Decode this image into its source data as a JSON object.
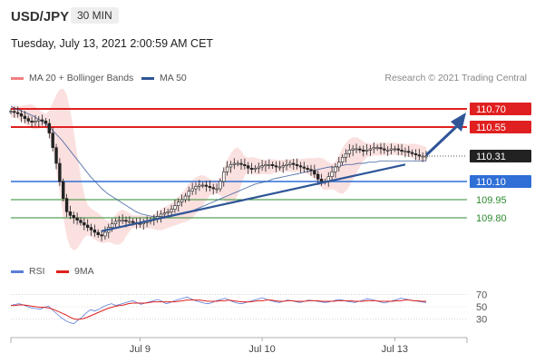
{
  "header": {
    "symbol": "USD/JPY",
    "timeframe": "30 MIN",
    "datetime": "Tuesday, July 13, 2021 2:00:59 AM CET",
    "credit": "Research © 2021 Trading Central"
  },
  "legend_main": [
    {
      "label": "MA 20 + Bollinger Bands",
      "color": "#f08080"
    },
    {
      "label": "MA 50",
      "color": "#2f5597"
    }
  ],
  "legend_rsi": [
    {
      "label": "RSI",
      "color": "#5b7fd6"
    },
    {
      "label": "9MA",
      "color": "#e02020"
    }
  ],
  "chart_data": {
    "type": "line",
    "price_axis": {
      "min": 109.5,
      "max": 110.85
    },
    "levels": [
      {
        "label": "110.70",
        "value": 110.7,
        "kind": "resistance",
        "color": "#e02020"
      },
      {
        "label": "110.55",
        "value": 110.55,
        "kind": "resistance",
        "color": "#e02020"
      },
      {
        "label": "110.31",
        "value": 110.31,
        "kind": "current",
        "color": "#222222"
      },
      {
        "label": "110.10",
        "value": 110.1,
        "kind": "pivot",
        "color": "#2f6fd6"
      },
      {
        "label": "109.95",
        "value": 109.95,
        "kind": "support",
        "color": "#2e8b2e"
      },
      {
        "label": "109.80",
        "value": 109.8,
        "kind": "support",
        "color": "#2e8b2e"
      }
    ],
    "x_ticks": [
      {
        "label": "Jul 9",
        "t": 37
      },
      {
        "label": "Jul 10",
        "t": 72
      },
      {
        "label": "Jul 13",
        "t": 110
      }
    ],
    "n_bars": 120,
    "price": [
      110.68,
      110.67,
      110.66,
      110.64,
      110.62,
      110.6,
      110.59,
      110.6,
      110.61,
      110.6,
      110.58,
      110.5,
      110.38,
      110.25,
      110.1,
      109.96,
      109.85,
      109.82,
      109.8,
      109.78,
      109.76,
      109.74,
      109.72,
      109.7,
      109.68,
      109.66,
      109.65,
      109.68,
      109.72,
      109.75,
      109.77,
      109.78,
      109.78,
      109.77,
      109.77,
      109.76,
      109.75,
      109.75,
      109.76,
      109.77,
      109.78,
      109.79,
      109.81,
      109.83,
      109.84,
      109.85,
      109.87,
      109.9,
      109.93,
      109.95,
      109.98,
      110.02,
      110.04,
      110.06,
      110.07,
      110.07,
      110.06,
      110.05,
      110.04,
      110.04,
      110.1,
      110.18,
      110.22,
      110.24,
      110.25,
      110.25,
      110.24,
      110.23,
      110.21,
      110.2,
      110.21,
      110.22,
      110.23,
      110.24,
      110.24,
      110.23,
      110.22,
      110.22,
      110.23,
      110.24,
      110.25,
      110.24,
      110.23,
      110.22,
      110.21,
      110.2,
      110.19,
      110.16,
      110.12,
      110.1,
      110.1,
      110.14,
      110.18,
      110.22,
      110.26,
      110.3,
      110.33,
      110.36,
      110.37,
      110.37,
      110.36,
      110.35,
      110.36,
      110.37,
      110.38,
      110.38,
      110.37,
      110.36,
      110.36,
      110.37,
      110.37,
      110.36,
      110.35,
      110.35,
      110.34,
      110.33,
      110.32,
      110.31,
      110.31,
      110.31
    ],
    "ma50": [
      110.72,
      110.7,
      110.68,
      110.66,
      110.64,
      110.61,
      110.58,
      110.54,
      110.49,
      110.44,
      110.38,
      110.32,
      110.26,
      110.2,
      110.14,
      110.09,
      110.04,
      110.0,
      109.97,
      109.94,
      109.91,
      109.88,
      109.85,
      109.83,
      109.82,
      109.81,
      109.81,
      109.81,
      109.82,
      109.83,
      109.84,
      109.85,
      109.86,
      109.88,
      109.9,
      109.92,
      109.94,
      109.96,
      109.98,
      110.0,
      110.02,
      110.04,
      110.06,
      110.08,
      110.09,
      110.1,
      110.12,
      110.13,
      110.14,
      110.15,
      110.16,
      110.17,
      110.18,
      110.19,
      110.2,
      110.21,
      110.22,
      110.22,
      110.23,
      110.24,
      110.24,
      110.25,
      110.25,
      110.26,
      110.26,
      110.27,
      110.27,
      110.27,
      110.27,
      110.27,
      110.27,
      110.27,
      110.27,
      110.27
    ],
    "rsi": {
      "ticks": [
        70,
        50,
        30
      ],
      "rsi": [
        52,
        54,
        55,
        53,
        50,
        48,
        47,
        46,
        49,
        51,
        44,
        38,
        32,
        27,
        24,
        22,
        28,
        33,
        40,
        45,
        43,
        46,
        50,
        53,
        55,
        52,
        54,
        56,
        58,
        60,
        57,
        54,
        56,
        58,
        60,
        62,
        59,
        55,
        57,
        60,
        62,
        64,
        66,
        63,
        60,
        58,
        56,
        55,
        57,
        60,
        62,
        64,
        61,
        58,
        56,
        55,
        57,
        59,
        61,
        63,
        65,
        62,
        60,
        58,
        57,
        59,
        61,
        60,
        58,
        57,
        59,
        61,
        60,
        59,
        58,
        57,
        58,
        60,
        62,
        61,
        59,
        58,
        57,
        59,
        61,
        63,
        62,
        60,
        58,
        56,
        58,
        60,
        62,
        64,
        63,
        61,
        60,
        59,
        58,
        57
      ],
      "ma9": [
        52,
        52,
        53,
        53,
        52,
        51,
        50,
        49,
        49,
        48,
        46,
        43,
        40,
        37,
        33,
        30,
        29,
        30,
        32,
        35,
        38,
        41,
        44,
        47,
        49,
        51,
        52,
        53,
        55,
        56,
        56,
        56,
        56,
        57,
        58,
        58,
        58,
        58,
        58,
        58,
        59,
        60,
        61,
        61,
        61,
        61,
        60,
        59,
        59,
        59,
        60,
        60,
        61,
        60,
        59,
        58,
        58,
        58,
        59,
        60,
        60,
        61,
        61,
        60,
        59,
        59,
        60,
        60,
        59,
        59,
        59,
        60,
        60,
        60,
        59,
        59,
        59,
        59,
        60,
        60,
        60,
        60,
        59,
        59,
        59,
        60,
        60,
        60,
        59,
        59,
        59,
        59,
        60,
        60,
        61,
        61,
        60,
        60,
        59,
        59
      ]
    }
  }
}
